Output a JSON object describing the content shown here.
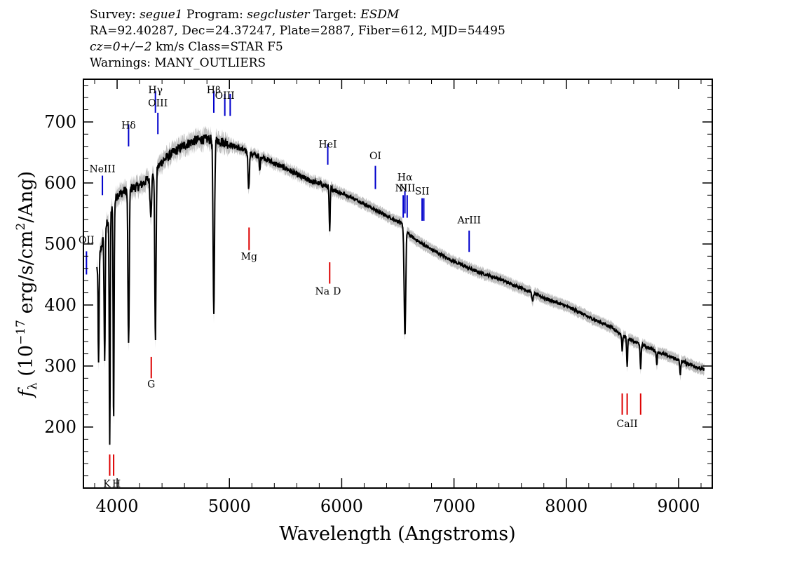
{
  "header": {
    "line1": {
      "survey_label": "Survey: ",
      "survey": "segue1",
      "program_label": " Program: ",
      "program": "segcluster",
      "target_label": " Target: ",
      "target": "ESDM"
    },
    "line2": "RA=92.40287, Dec=24.37247, Plate=2887, Fiber=612, MJD=54495",
    "line3": {
      "cz": "cz=0+/−2",
      "rest": " km/s Class=STAR F5"
    },
    "line4": "Warnings: MANY_OUTLIERS"
  },
  "chart_data": {
    "type": "line",
    "xlabel": "Wavelength (Angstroms)",
    "ylabel": "f_λ (10^-17 erg/s/cm^2/Ang)",
    "ylabel_parts": {
      "f": "f",
      "sub": "λ",
      "a": " (10",
      "exp1": "−17",
      "b": " erg/s/cm",
      "exp2": "2",
      "c": "/Ang)"
    },
    "xlim": [
      3700,
      9300
    ],
    "ylim": [
      100,
      770
    ],
    "xticks": [
      4000,
      5000,
      6000,
      7000,
      8000,
      9000
    ],
    "yticks": [
      200,
      300,
      400,
      500,
      600,
      700
    ],
    "xtick_labels": [
      "4000",
      "5000",
      "6000",
      "7000",
      "8000",
      "9000"
    ],
    "ytick_labels": [
      "200",
      "300",
      "400",
      "500",
      "600",
      "700"
    ],
    "line_color": "#000000",
    "error_color": "#bfbfbf",
    "emission_color": "#0000cc",
    "absorption_color": "#dd0000",
    "continuum": [
      [
        3820,
        460
      ],
      [
        3900,
        530
      ],
      [
        4000,
        580
      ],
      [
        4100,
        590
      ],
      [
        4200,
        595
      ],
      [
        4300,
        610
      ],
      [
        4400,
        635
      ],
      [
        4500,
        650
      ],
      [
        4600,
        662
      ],
      [
        4700,
        670
      ],
      [
        4800,
        672
      ],
      [
        4900,
        670
      ],
      [
        5000,
        663
      ],
      [
        5100,
        656
      ],
      [
        5200,
        647
      ],
      [
        5300,
        642
      ],
      [
        5400,
        632
      ],
      [
        5500,
        624
      ],
      [
        5600,
        614
      ],
      [
        5700,
        605
      ],
      [
        5800,
        599
      ],
      [
        5900,
        592
      ],
      [
        6000,
        583
      ],
      [
        6100,
        575
      ],
      [
        6200,
        566
      ],
      [
        6300,
        556
      ],
      [
        6400,
        546
      ],
      [
        6500,
        537
      ],
      [
        6560,
        530
      ],
      [
        6600,
        515
      ],
      [
        6700,
        502
      ],
      [
        6800,
        491
      ],
      [
        6900,
        481
      ],
      [
        7000,
        471
      ],
      [
        7100,
        463
      ],
      [
        7200,
        455
      ],
      [
        7300,
        449
      ],
      [
        7400,
        443
      ],
      [
        7500,
        435
      ],
      [
        7600,
        428
      ],
      [
        7700,
        420
      ],
      [
        7800,
        412
      ],
      [
        7900,
        405
      ],
      [
        8000,
        398
      ],
      [
        8100,
        390
      ],
      [
        8200,
        380
      ],
      [
        8300,
        372
      ],
      [
        8400,
        364
      ],
      [
        8500,
        350
      ],
      [
        8600,
        340
      ],
      [
        8700,
        333
      ],
      [
        8800,
        324
      ],
      [
        8900,
        317
      ],
      [
        9000,
        310
      ],
      [
        9100,
        303
      ],
      [
        9230,
        293
      ]
    ],
    "absorption_features": [
      {
        "wave": 3835,
        "depth": 170,
        "width": 6
      },
      {
        "wave": 3889,
        "depth": 210,
        "width": 7
      },
      {
        "wave": 3934,
        "depth": 380,
        "width": 6
      },
      {
        "wave": 3969,
        "depth": 360,
        "width": 6
      },
      {
        "wave": 4102,
        "depth": 260,
        "width": 8
      },
      {
        "wave": 4300,
        "depth": 60,
        "width": 10
      },
      {
        "wave": 4341,
        "depth": 280,
        "width": 8
      },
      {
        "wave": 4861,
        "depth": 290,
        "width": 9
      },
      {
        "wave": 5172,
        "depth": 60,
        "width": 8
      },
      {
        "wave": 5270,
        "depth": 25,
        "width": 6
      },
      {
        "wave": 5893,
        "depth": 75,
        "width": 6
      },
      {
        "wave": 6563,
        "depth": 180,
        "width": 10
      },
      {
        "wave": 7700,
        "depth": 15,
        "width": 8
      },
      {
        "wave": 8498,
        "depth": 25,
        "width": 6
      },
      {
        "wave": 8542,
        "depth": 45,
        "width": 6
      },
      {
        "wave": 8662,
        "depth": 42,
        "width": 6
      },
      {
        "wave": 8806,
        "depth": 20,
        "width": 6
      },
      {
        "wave": 9015,
        "depth": 25,
        "width": 6
      }
    ],
    "emission_lines": [
      {
        "label": "OII",
        "wave": 3727,
        "label_y": 501
      },
      {
        "label": "NeIII",
        "wave": 3869,
        "label_y": 618
      },
      {
        "label": "Hδ",
        "wave": 4102,
        "label_y": 689
      },
      {
        "label": "Hγ",
        "wave": 4341,
        "label_y": 747
      },
      {
        "label": "OIII",
        "wave": 4363,
        "label_y": 726
      },
      {
        "label": "Hβ",
        "wave": 4861,
        "label_y": 747
      },
      {
        "label": "OIII",
        "wave": 4959,
        "label_y": 738
      },
      {
        "label": "HeI",
        "wave": 5876,
        "label_y": 658
      },
      {
        "label": "OI",
        "wave": 6300,
        "label_y": 639
      },
      {
        "label": "NII",
        "wave": 6548,
        "label_y": 586
      },
      {
        "label": "Hα",
        "wave": 6563,
        "label_y": 604
      },
      {
        "label": "NII",
        "wave": 6583,
        "label_y": 586
      },
      {
        "label": "SII",
        "wave": 6716,
        "label_y": 581
      },
      {
        "label": "ArIII",
        "wave": 7135,
        "label_y": 534
      }
    ],
    "emission_ticks": [
      {
        "wave": 3727,
        "y1": 450,
        "y2": 488
      },
      {
        "wave": 3869,
        "y1": 580,
        "y2": 612
      },
      {
        "wave": 4102,
        "y1": 660,
        "y2": 696
      },
      {
        "wave": 4341,
        "y1": 715,
        "y2": 751
      },
      {
        "wave": 4363,
        "y1": 680,
        "y2": 715
      },
      {
        "wave": 4861,
        "y1": 715,
        "y2": 751
      },
      {
        "wave": 4959,
        "y1": 710,
        "y2": 746
      },
      {
        "wave": 5007,
        "y1": 710,
        "y2": 746
      },
      {
        "wave": 5876,
        "y1": 630,
        "y2": 664
      },
      {
        "wave": 6300,
        "y1": 590,
        "y2": 628
      },
      {
        "wave": 6548,
        "y1": 543,
        "y2": 580
      },
      {
        "wave": 6563,
        "y1": 550,
        "y2": 587
      },
      {
        "wave": 6583,
        "y1": 543,
        "y2": 580
      },
      {
        "wave": 6716,
        "y1": 538,
        "y2": 575
      },
      {
        "wave": 6731,
        "y1": 538,
        "y2": 575
      },
      {
        "wave": 7135,
        "y1": 487,
        "y2": 522
      }
    ],
    "absorption_lines": [
      {
        "label": "K",
        "wave": 3934,
        "label_y": 102
      },
      {
        "label": "H",
        "wave": 3969,
        "label_y": 102
      },
      {
        "label": "G",
        "wave": 4304,
        "label_y": 265
      },
      {
        "label": "Mg",
        "wave": 5175,
        "label_y": 474
      },
      {
        "label": "Na",
        "wave": 5890,
        "label_y": 417
      },
      {
        "label": "D",
        "wave": 5896,
        "label_y": 417
      },
      {
        "label": "CaII",
        "wave": 8542,
        "label_y": 200
      }
    ],
    "absorption_ticks": [
      {
        "wave": 3934,
        "y1": 120,
        "y2": 155
      },
      {
        "wave": 3969,
        "y1": 120,
        "y2": 155
      },
      {
        "wave": 4304,
        "y1": 280,
        "y2": 315
      },
      {
        "wave": 5175,
        "y1": 490,
        "y2": 527
      },
      {
        "wave": 5893,
        "y1": 435,
        "y2": 470
      },
      {
        "wave": 8498,
        "y1": 220,
        "y2": 255
      },
      {
        "wave": 8542,
        "y1": 220,
        "y2": 255
      },
      {
        "wave": 8662,
        "y1": 220,
        "y2": 255
      }
    ]
  }
}
